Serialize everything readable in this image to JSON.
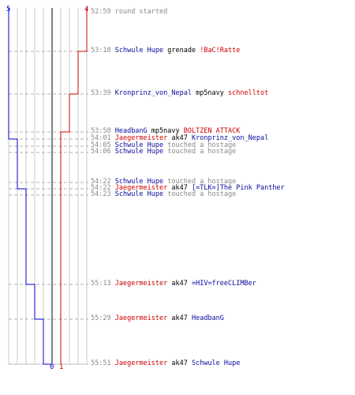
{
  "colors": {
    "team_blue": "#0000cc",
    "team_red": "#cc0000",
    "grid": "#c8c8c8",
    "center": "#808080",
    "time": "#8a8a8a"
  },
  "scores": {
    "blue_start": "5",
    "red_final": "4",
    "blue_final": "0",
    "red_start": "1"
  },
  "events": [
    {
      "time": "52:59",
      "parts": [
        {
          "text": "round started",
          "color": "gray"
        }
      ]
    },
    {
      "time": "53:18",
      "parts": [
        {
          "text": "Schwule Hupe",
          "color": "blue"
        },
        {
          "text": " grenade ",
          "color": "plain"
        },
        {
          "text": "!BaC!Ratte",
          "color": "red"
        }
      ]
    },
    {
      "time": "53:39",
      "parts": [
        {
          "text": "Kronprinz_von_Nepal",
          "color": "blue"
        },
        {
          "text": " mp5navy ",
          "color": "plain"
        },
        {
          "text": "schnelltot",
          "color": "red"
        }
      ]
    },
    {
      "time": "53:58",
      "parts": [
        {
          "text": "HeadbanG",
          "color": "blue"
        },
        {
          "text": " mp5navy ",
          "color": "plain"
        },
        {
          "text": "BOLTZEN ATTACK",
          "color": "red"
        }
      ]
    },
    {
      "time": "54:01",
      "parts": [
        {
          "text": "Jaegermeister",
          "color": "red"
        },
        {
          "text": " ak47 ",
          "color": "plain"
        },
        {
          "text": "Kronprinz_von_Nepal",
          "color": "blue"
        }
      ]
    },
    {
      "time": "54:05",
      "parts": [
        {
          "text": "Schwule Hupe",
          "color": "blue"
        },
        {
          "text": " touched a hostage",
          "color": "gray"
        }
      ]
    },
    {
      "time": "54:06",
      "parts": [
        {
          "text": "Schwule Hupe",
          "color": "blue"
        },
        {
          "text": " touched a hostage",
          "color": "gray"
        }
      ]
    },
    {
      "time": "54:22",
      "parts": [
        {
          "text": "Schwule Hupe",
          "color": "blue"
        },
        {
          "text": " touched a hostage",
          "color": "gray"
        }
      ]
    },
    {
      "time": "54:22",
      "parts": [
        {
          "text": "Jaegermeister",
          "color": "red"
        },
        {
          "text": " ak47 ",
          "color": "plain"
        },
        {
          "text": "[=TLK=]The Pink Panther",
          "color": "blue"
        }
      ]
    },
    {
      "time": "54:23",
      "parts": [
        {
          "text": "Schwule Hupe",
          "color": "blue"
        },
        {
          "text": " touched a hostage",
          "color": "gray"
        }
      ]
    },
    {
      "time": "55:13",
      "parts": [
        {
          "text": "Jaegermeister",
          "color": "red"
        },
        {
          "text": " ak47 ",
          "color": "plain"
        },
        {
          "text": "=HIV=freeCLIMBer",
          "color": "blue"
        }
      ]
    },
    {
      "time": "55:29",
      "parts": [
        {
          "text": "Jaegermeister",
          "color": "red"
        },
        {
          "text": " ak47 ",
          "color": "plain"
        },
        {
          "text": "HeadbanG",
          "color": "blue"
        }
      ]
    },
    {
      "time": "55:51",
      "parts": [
        {
          "text": "Jaegermeister",
          "color": "red"
        },
        {
          "text": " ak47 ",
          "color": "plain"
        },
        {
          "text": "Schwule Hupe",
          "color": "blue"
        }
      ]
    }
  ]
}
